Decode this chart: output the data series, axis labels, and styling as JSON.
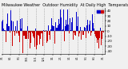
{
  "title": "Milwaukee Weather  Outdoor Humidity  At Daily High  Temperature  (Past Year)",
  "ylim": [
    -45,
    45
  ],
  "yticks": [
    -40,
    -30,
    -20,
    -10,
    0,
    10,
    20,
    30,
    40
  ],
  "ytick_labels": [
    "-40",
    "-30",
    "-20",
    "-10",
    "0",
    "10",
    "20",
    "30",
    "40"
  ],
  "n_bars": 365,
  "background_color": "#f0f0f0",
  "bar_color_pos": "#0000cc",
  "bar_color_neg": "#cc0000",
  "legend_colors": [
    "#0000cc",
    "#cc0000"
  ],
  "legend_labels": [
    "",
    ""
  ],
  "grid_color": "#888888",
  "grid_style": ":",
  "grid_lw": 0.5,
  "title_fontsize": 3.5,
  "tick_fontsize": 3.0,
  "seed": 42,
  "month_interval": 30
}
